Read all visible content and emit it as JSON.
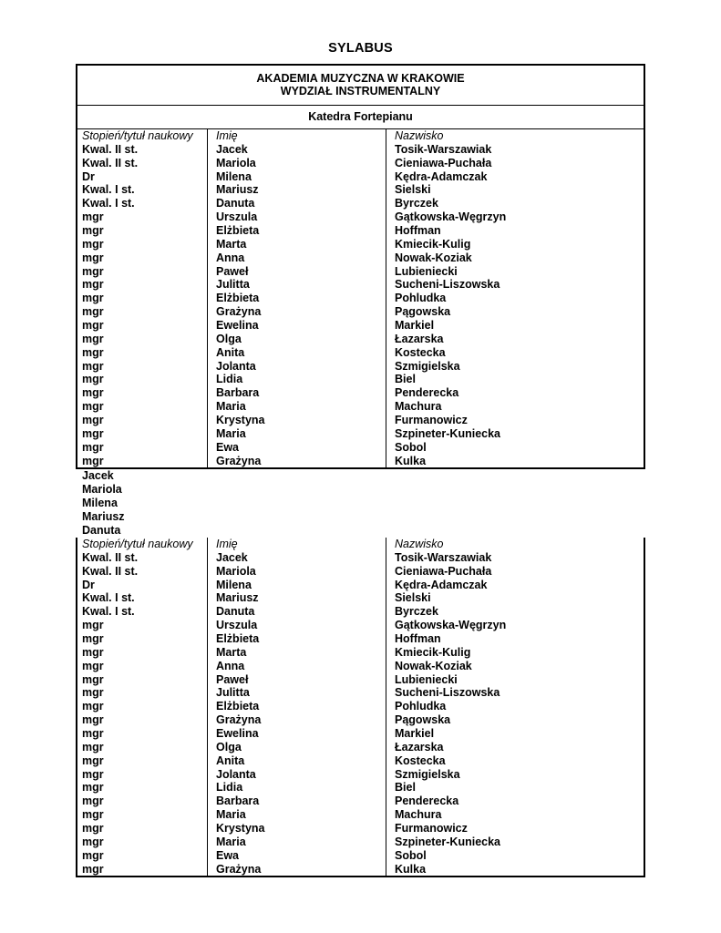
{
  "document": {
    "title": "SYLABUS",
    "institution": {
      "line1": "AKADEMIA MUZYCZNA W KRAKOWIE",
      "line2": "WYDZIAŁ INSTRUMENTALNY"
    },
    "department": "Katedra Fortepianu",
    "staff_table": {
      "columns": [
        "Stopień/tytuł naukowy",
        "Imię",
        "Nazwisko"
      ],
      "rows": [
        [
          "Kwal. II st.",
          "Jacek",
          "Tosik-Warszawiak"
        ],
        [
          "Kwal. II st.",
          "Mariola",
          "Cieniawa-Puchała"
        ],
        [
          "Dr",
          "Milena",
          "Kędra-Adamczak"
        ],
        [
          "Kwal. I st.",
          "Mariusz",
          "Sielski"
        ],
        [
          "Kwal. I st.",
          "Danuta",
          "Byrczek"
        ],
        [
          "mgr",
          "Urszula",
          "Gątkowska-Węgrzyn"
        ],
        [
          "mgr",
          "Elżbieta",
          "Hoffman"
        ],
        [
          "mgr",
          "Marta",
          "Kmiecik-Kulig"
        ],
        [
          "mgr",
          "Anna",
          "Nowak-Koziak"
        ],
        [
          "mgr",
          "Paweł",
          "Lubieniecki"
        ],
        [
          "mgr",
          "Julitta",
          "Sucheni-Liszowska"
        ],
        [
          "mgr",
          "Elżbieta",
          "Pohludka"
        ],
        [
          "mgr",
          "Grażyna",
          "Pągowska"
        ],
        [
          "mgr",
          "Ewelina",
          "Markiel"
        ],
        [
          "mgr",
          "Olga",
          "Łazarska"
        ],
        [
          "mgr",
          "Anita",
          "Kostecka"
        ],
        [
          "mgr",
          "Jolanta",
          "Szmigielska"
        ],
        [
          "mgr",
          "Lidia",
          "Biel"
        ],
        [
          "mgr",
          "Barbara",
          "Penderecka"
        ],
        [
          "mgr",
          "Maria",
          "Machura"
        ],
        [
          "mgr",
          "Krystyna",
          "Furmanowicz"
        ],
        [
          "mgr",
          "Maria",
          "Szpineter-Kuniecka"
        ],
        [
          "mgr",
          "Ewa",
          "Sobol"
        ],
        [
          "mgr",
          "Grażyna",
          "Kulka"
        ]
      ]
    },
    "first_names_list": [
      "Jacek",
      "Mariola",
      "Milena",
      "Mariusz",
      "Danuta"
    ]
  }
}
